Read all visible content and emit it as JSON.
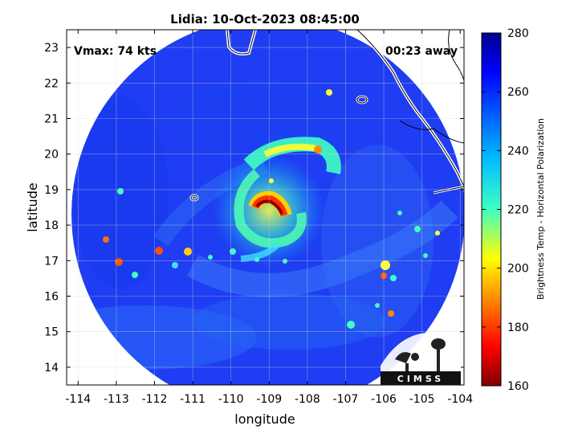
{
  "title": "Lidia: 10-Oct-2023 08:45:00",
  "annotations": {
    "vmax": "Vmax: 74 kts",
    "time_away": "00:23 away"
  },
  "logo": {
    "text": "CIMSS"
  },
  "chart_data": {
    "type": "heatmap",
    "title": "Lidia: 10-Oct-2023 08:45:00",
    "xlabel": "longitude",
    "ylabel": "latitude",
    "xlim": [
      -114.3,
      -103.9
    ],
    "ylim": [
      13.5,
      23.5
    ],
    "x_ticks": [
      -114,
      -113,
      -112,
      -111,
      -110,
      -109,
      -108,
      -107,
      -106,
      -105,
      -104
    ],
    "y_ticks": [
      14,
      15,
      16,
      17,
      18,
      19,
      20,
      21,
      22,
      23
    ],
    "grid": true,
    "colorbar": {
      "label": "Brightness Temp - Horizontal Polarization",
      "range": [
        160,
        280
      ],
      "ticks": [
        160,
        180,
        200,
        220,
        240,
        260,
        280
      ],
      "colormap": "jet"
    },
    "swath_center": {
      "lon": -109.1,
      "lat": 18.6
    },
    "swath_radius_deg": 5.5,
    "background_tb": 262,
    "storm_center": {
      "lon": -109.0,
      "lat": 18.5
    },
    "eyewall_tb": 170,
    "features": [
      {
        "name": "eyewall",
        "lon": -108.9,
        "lat": 18.5,
        "tb": 170
      },
      {
        "name": "north-band",
        "lon": -108.2,
        "lat": 20.0,
        "tb": 205
      },
      {
        "name": "south-band",
        "lon": -108.8,
        "lat": 17.3,
        "tb": 215
      },
      {
        "name": "east-convection",
        "lon": -105.9,
        "lat": 16.9,
        "tb": 210
      },
      {
        "name": "west-convection",
        "lon": -112.0,
        "lat": 17.3,
        "tb": 200
      }
    ]
  }
}
